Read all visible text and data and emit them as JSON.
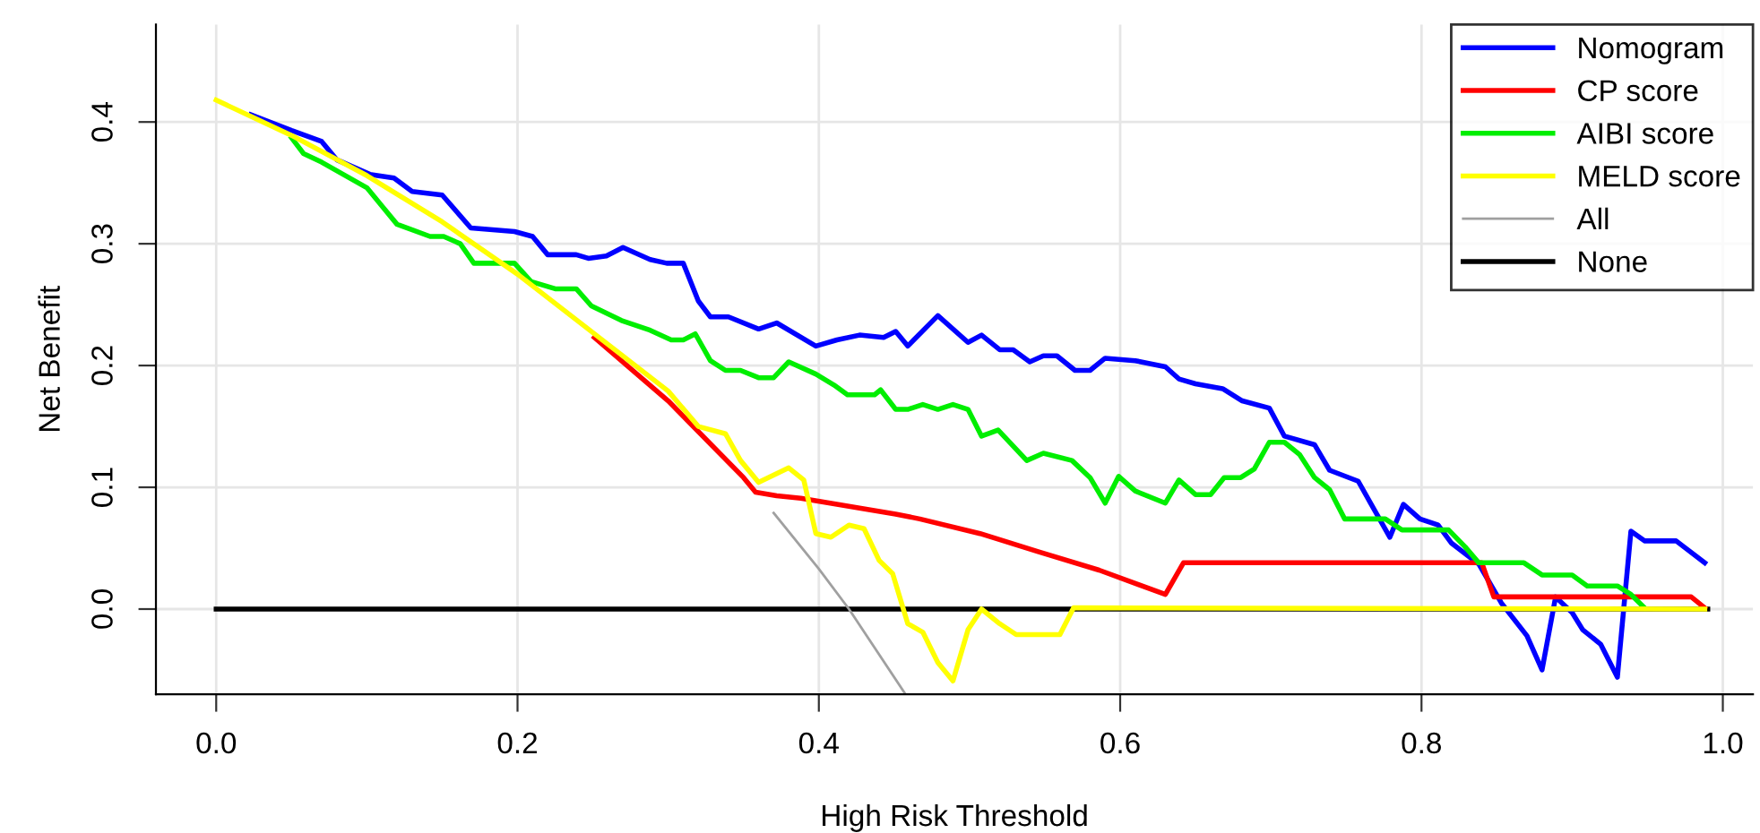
{
  "chart_data": {
    "type": "line",
    "xlabel": "High Risk Threshold",
    "ylabel": "Net Benefit",
    "xlim": [
      -0.04,
      1.02
    ],
    "ylim": [
      -0.07,
      0.48
    ],
    "xticks": [
      {
        "value": 0,
        "label": "0.0"
      },
      0.2,
      0.4,
      0.6,
      0.8,
      {
        "value": 1,
        "label": "1.0"
      }
    ],
    "yticks": [
      {
        "value": 0,
        "label": "0.0"
      },
      0.1,
      0.2,
      0.3,
      0.4
    ],
    "grid": true,
    "legend": "top right",
    "marker": "none",
    "line_style": "solid",
    "series": [
      {
        "name": "None",
        "color": "#000000",
        "x": [
          0,
          0.99
        ],
        "values": [
          0,
          0
        ]
      },
      {
        "name": "All",
        "color": "#a0a0a0",
        "x": [
          0.37,
          0.4,
          0.42,
          0.457
        ],
        "values": [
          0.079,
          0.033,
          0.0,
          -0.069
        ]
      },
      {
        "name": "Nomogram",
        "color": "#0000ff",
        "x": [
          0.023,
          0.05,
          0.07,
          0.08,
          0.102,
          0.118,
          0.13,
          0.15,
          0.169,
          0.198,
          0.21,
          0.22,
          0.239,
          0.247,
          0.259,
          0.27,
          0.288,
          0.299,
          0.31,
          0.32,
          0.328,
          0.34,
          0.36,
          0.372,
          0.398,
          0.412,
          0.427,
          0.443,
          0.451,
          0.459,
          0.479,
          0.499,
          0.508,
          0.52,
          0.529,
          0.54,
          0.549,
          0.558,
          0.57,
          0.58,
          0.59,
          0.61,
          0.63,
          0.639,
          0.65,
          0.668,
          0.681,
          0.699,
          0.709,
          0.729,
          0.739,
          0.758,
          0.779,
          0.788,
          0.799,
          0.811,
          0.82,
          0.838,
          0.853,
          0.87,
          0.88,
          0.889,
          0.9,
          0.907,
          0.919,
          0.93,
          0.939,
          0.948,
          0.969,
          0.988
        ],
        "values": [
          0.406,
          0.393,
          0.384,
          0.369,
          0.357,
          0.354,
          0.343,
          0.34,
          0.313,
          0.31,
          0.306,
          0.291,
          0.291,
          0.288,
          0.29,
          0.297,
          0.287,
          0.284,
          0.284,
          0.253,
          0.24,
          0.24,
          0.23,
          0.235,
          0.216,
          0.221,
          0.225,
          0.223,
          0.228,
          0.216,
          0.241,
          0.219,
          0.225,
          0.213,
          0.213,
          0.203,
          0.208,
          0.208,
          0.196,
          0.196,
          0.206,
          0.204,
          0.199,
          0.189,
          0.185,
          0.181,
          0.171,
          0.165,
          0.142,
          0.135,
          0.114,
          0.105,
          0.059,
          0.086,
          0.074,
          0.069,
          0.054,
          0.037,
          0.005,
          -0.022,
          -0.05,
          0.01,
          -0.003,
          -0.017,
          -0.029,
          -0.056,
          0.064,
          0.056,
          0.056,
          0.038
        ]
      },
      {
        "name": "CP score",
        "color": "#ff0000",
        "x": [
          0.251,
          0.3,
          0.35,
          0.358,
          0.372,
          0.388,
          0.412,
          0.427,
          0.451,
          0.467,
          0.507,
          0.546,
          0.586,
          0.63,
          0.642,
          0.84,
          0.848,
          0.979,
          0.988
        ],
        "values": [
          0.223,
          0.171,
          0.108,
          0.096,
          0.093,
          0.091,
          0.086,
          0.083,
          0.078,
          0.074,
          0.062,
          0.047,
          0.032,
          0.012,
          0.038,
          0.038,
          0.01,
          0.01,
          0.001
        ]
      },
      {
        "name": "AIBI score",
        "color": "#00ee00",
        "x": [
          0.05,
          0.058,
          0.07,
          0.1,
          0.11,
          0.12,
          0.142,
          0.151,
          0.162,
          0.171,
          0.198,
          0.209,
          0.225,
          0.239,
          0.249,
          0.269,
          0.288,
          0.302,
          0.31,
          0.318,
          0.328,
          0.338,
          0.348,
          0.36,
          0.37,
          0.38,
          0.398,
          0.41,
          0.419,
          0.437,
          0.441,
          0.451,
          0.459,
          0.469,
          0.479,
          0.489,
          0.499,
          0.508,
          0.519,
          0.538,
          0.549,
          0.568,
          0.58,
          0.59,
          0.599,
          0.61,
          0.63,
          0.639,
          0.65,
          0.66,
          0.669,
          0.68,
          0.689,
          0.699,
          0.709,
          0.719,
          0.729,
          0.739,
          0.749,
          0.776,
          0.787,
          0.818,
          0.829,
          0.838,
          0.868,
          0.88,
          0.9,
          0.91,
          0.93,
          0.939,
          0.948
        ],
        "values": [
          0.387,
          0.374,
          0.367,
          0.346,
          0.331,
          0.316,
          0.306,
          0.306,
          0.3,
          0.284,
          0.284,
          0.269,
          0.263,
          0.263,
          0.249,
          0.237,
          0.229,
          0.221,
          0.221,
          0.226,
          0.204,
          0.196,
          0.196,
          0.19,
          0.19,
          0.203,
          0.193,
          0.184,
          0.176,
          0.176,
          0.18,
          0.164,
          0.164,
          0.168,
          0.164,
          0.168,
          0.164,
          0.142,
          0.147,
          0.122,
          0.128,
          0.122,
          0.108,
          0.087,
          0.109,
          0.097,
          0.087,
          0.106,
          0.094,
          0.094,
          0.108,
          0.108,
          0.115,
          0.137,
          0.137,
          0.127,
          0.108,
          0.098,
          0.074,
          0.074,
          0.065,
          0.065,
          0.051,
          0.038,
          0.038,
          0.028,
          0.028,
          0.019,
          0.019,
          0.012,
          0.001
        ]
      },
      {
        "name": "MELD score",
        "color": "#ffff00",
        "x": [
          0,
          0.05,
          0.1,
          0.15,
          0.2,
          0.25,
          0.3,
          0.32,
          0.338,
          0.348,
          0.36,
          0.38,
          0.39,
          0.398,
          0.408,
          0.42,
          0.43,
          0.44,
          0.449,
          0.459,
          0.469,
          0.479,
          0.489,
          0.499,
          0.508,
          0.52,
          0.531,
          0.56,
          0.569,
          0.988
        ],
        "values": [
          0.418,
          0.389,
          0.356,
          0.318,
          0.275,
          0.227,
          0.179,
          0.15,
          0.144,
          0.122,
          0.104,
          0.116,
          0.106,
          0.062,
          0.059,
          0.069,
          0.066,
          0.04,
          0.029,
          -0.012,
          -0.019,
          -0.044,
          -0.059,
          -0.017,
          0.0,
          -0.012,
          -0.021,
          -0.021,
          0.001,
          0.0
        ]
      }
    ]
  }
}
